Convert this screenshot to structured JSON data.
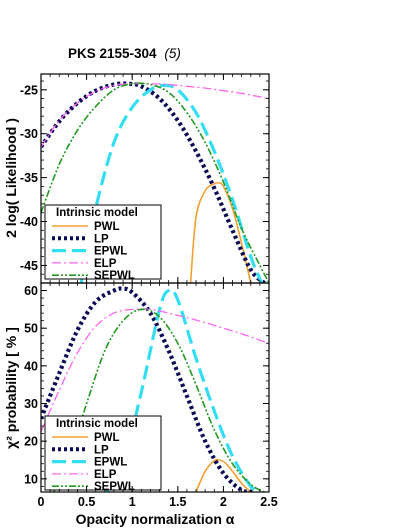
{
  "title": "PKS 2155-304",
  "title_suffix": "(5)",
  "xlabel": "Opacity normalization α",
  "xticks": [
    "0",
    "0.5",
    "1",
    "1.5",
    "2",
    "2.5"
  ],
  "colors": {
    "PWL": "#f0a030",
    "LP": "#0a0a55",
    "EPWL": "#33ddf2",
    "ELP": "#ff66ee",
    "SEPWL": "#229922"
  },
  "chart_data": [
    {
      "type": "line",
      "ylabel": "2 log( Likelihood )",
      "xlim": [
        0,
        2.5
      ],
      "ylim": [
        -47,
        -23.2
      ],
      "yticks": [
        -25,
        -30,
        -35,
        -40,
        -45
      ],
      "grid": false,
      "legend_title": "Intrinsic model",
      "legend_position": "bottom-left",
      "series": [
        {
          "name": "PWL",
          "x": [
            1.64,
            1.7,
            1.8,
            1.9,
            1.95,
            2.0,
            2.1,
            2.2,
            2.3
          ],
          "y": [
            -47,
            -39.5,
            -36.5,
            -35.7,
            -35.6,
            -36.0,
            -38.5,
            -42.5,
            -47
          ]
        },
        {
          "name": "LP",
          "x": [
            0.0,
            0.2,
            0.4,
            0.6,
            0.8,
            0.95,
            1.1,
            1.3,
            1.5,
            1.7,
            1.9,
            2.1,
            2.3,
            2.45
          ],
          "y": [
            -31.5,
            -28.6,
            -26.5,
            -25.1,
            -24.4,
            -24.3,
            -24.6,
            -26.0,
            -28.5,
            -32.0,
            -36.2,
            -41.0,
            -45.5,
            -47
          ]
        },
        {
          "name": "EPWL",
          "x": [
            0.44,
            0.6,
            0.8,
            1.0,
            1.2,
            1.35,
            1.5,
            1.7,
            1.9,
            2.1,
            2.3,
            2.42
          ],
          "y": [
            -47,
            -38.5,
            -31.0,
            -27.0,
            -25.0,
            -24.5,
            -25.0,
            -27.6,
            -32.0,
            -37.5,
            -44.0,
            -47
          ]
        },
        {
          "name": "ELP",
          "x": [
            0.0,
            0.2,
            0.4,
            0.6,
            0.8,
            1.0,
            1.2,
            1.4,
            1.6,
            1.8,
            2.0,
            2.2,
            2.4,
            2.5
          ],
          "y": [
            -31.5,
            -28.5,
            -26.5,
            -25.2,
            -24.5,
            -24.3,
            -24.3,
            -24.4,
            -24.6,
            -24.8,
            -25.1,
            -25.4,
            -25.8,
            -26.0
          ]
        },
        {
          "name": "SEPWL",
          "x": [
            0.0,
            0.2,
            0.4,
            0.6,
            0.8,
            1.0,
            1.2,
            1.4,
            1.6,
            1.8,
            2.0,
            2.2,
            2.4,
            2.5
          ],
          "y": [
            -39.0,
            -33.5,
            -29.6,
            -26.9,
            -25.0,
            -24.3,
            -24.4,
            -25.3,
            -27.6,
            -31.0,
            -35.5,
            -40.8,
            -45.0,
            -47
          ]
        }
      ]
    },
    {
      "type": "line",
      "ylabel": "χ² probability [ % ]",
      "xlim": [
        0,
        2.5
      ],
      "ylim": [
        6.5,
        62
      ],
      "yticks": [
        10,
        20,
        30,
        40,
        50,
        60
      ],
      "grid": false,
      "legend_title": "Intrinsic model",
      "legend_position": "bottom-left",
      "series": [
        {
          "name": "PWL",
          "x": [
            1.7,
            1.8,
            1.9,
            1.95,
            2.0,
            2.05,
            2.1,
            2.2,
            2.3
          ],
          "y": [
            6.5,
            12.0,
            14.8,
            15.0,
            14.6,
            13.5,
            12.0,
            8.8,
            6.5
          ]
        },
        {
          "name": "LP",
          "x": [
            0.0,
            0.2,
            0.4,
            0.6,
            0.8,
            0.9,
            1.0,
            1.2,
            1.4,
            1.6,
            1.8,
            2.0,
            2.2,
            2.35
          ],
          "y": [
            26.0,
            38.0,
            49.5,
            57.0,
            60.0,
            60.5,
            59.5,
            54.0,
            44.0,
            32.0,
            20.0,
            11.5,
            7.0,
            6.5
          ]
        },
        {
          "name": "EPWL",
          "x": [
            0.72,
            0.9,
            1.1,
            1.3,
            1.4,
            1.5,
            1.7,
            1.9,
            2.1,
            2.3,
            2.4
          ],
          "y": [
            6.5,
            14.0,
            33.0,
            55.0,
            60.0,
            57.5,
            42.0,
            28.0,
            16.0,
            8.0,
            6.5
          ]
        },
        {
          "name": "ELP",
          "x": [
            0.0,
            0.2,
            0.4,
            0.6,
            0.8,
            1.0,
            1.2,
            1.4,
            1.6,
            1.8,
            2.0,
            2.2,
            2.4,
            2.5
          ],
          "y": [
            22.5,
            33.5,
            43.5,
            50.5,
            54.0,
            55.0,
            55.0,
            54.0,
            52.8,
            51.5,
            50.0,
            48.5,
            46.8,
            46.0
          ]
        },
        {
          "name": "SEPWL",
          "x": [
            0.14,
            0.3,
            0.5,
            0.7,
            0.9,
            1.1,
            1.3,
            1.5,
            1.7,
            1.9,
            2.1,
            2.3,
            2.45
          ],
          "y": [
            6.5,
            15.0,
            30.0,
            44.0,
            52.0,
            55.0,
            53.0,
            46.0,
            35.0,
            23.0,
            14.0,
            8.5,
            6.5
          ]
        }
      ]
    }
  ]
}
